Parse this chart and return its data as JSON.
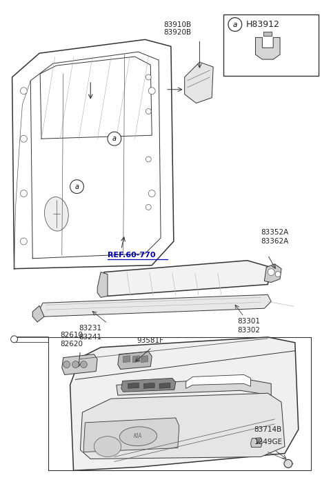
{
  "background_color": "#ffffff",
  "line_color": "#333333",
  "label_color": "#222222",
  "ref_color": "#0000bb",
  "figure_width": 4.8,
  "figure_height": 6.99,
  "label_83910B": "83910B\n83920B",
  "label_ref": "REF.60-770",
  "label_83352A": "83352A\n83362A",
  "label_83231": "83231\n83241",
  "label_83301": "83301\n83302",
  "label_82610": "82610\n82620",
  "label_93581F": "93581F",
  "label_83714B": "83714B",
  "label_1249GE": "1249GE",
  "label_H83912": "H83912"
}
